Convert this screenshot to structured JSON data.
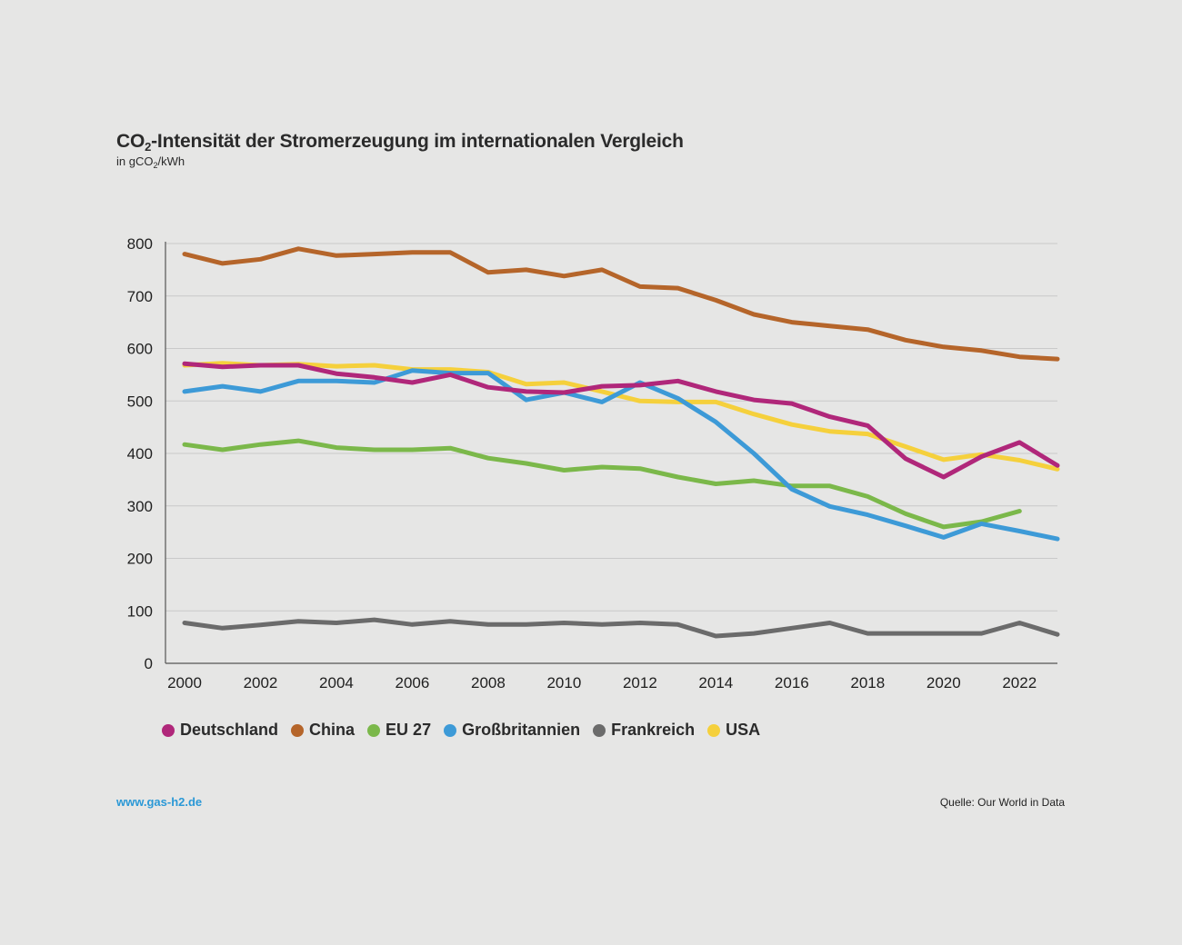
{
  "chart_data": {
    "type": "line",
    "title_prefix": "CO",
    "title_sub": "2",
    "title_suffix": "-Intensität der Stromerzeugung im internationalen Vergleich",
    "subtitle_prefix": "in gCO",
    "subtitle_sub": "2",
    "subtitle_suffix": "/kWh",
    "xlim": [
      2000,
      2023
    ],
    "ylim": [
      0,
      800
    ],
    "x_ticks": [
      2000,
      2002,
      2004,
      2006,
      2008,
      2010,
      2012,
      2014,
      2016,
      2018,
      2020,
      2022
    ],
    "y_ticks": [
      0,
      100,
      200,
      300,
      400,
      500,
      600,
      700,
      800
    ],
    "grid": true,
    "legend_position": "bottom-left",
    "series": [
      {
        "name": "USA",
        "color": "#f5d03c",
        "start": 2000,
        "values": [
          568,
          572,
          568,
          570,
          566,
          568,
          560,
          560,
          555,
          532,
          535,
          518,
          500,
          498,
          498,
          475,
          455,
          442,
          437,
          413,
          388,
          398,
          387,
          370
        ]
      },
      {
        "name": "China",
        "color": "#b5652a",
        "start": 2000,
        "values": [
          780,
          762,
          770,
          790,
          777,
          780,
          783,
          783,
          745,
          750,
          738,
          750,
          718,
          715,
          692,
          665,
          650,
          643,
          636,
          616,
          603,
          596,
          584,
          580
        ]
      },
      {
        "name": "Frankreich",
        "color": "#6b6b6b",
        "start": 2000,
        "values": [
          77,
          67,
          73,
          80,
          77,
          83,
          74,
          80,
          74,
          74,
          77,
          74,
          77,
          74,
          52,
          57,
          67,
          77,
          57,
          57,
          57,
          57,
          77,
          55
        ]
      },
      {
        "name": "EU 27",
        "color": "#7bb84a",
        "start": 2000,
        "values": [
          417,
          407,
          417,
          424,
          411,
          407,
          407,
          410,
          391,
          381,
          368,
          374,
          371,
          355,
          342,
          348,
          338,
          338,
          318,
          285,
          260,
          270,
          290
        ]
      },
      {
        "name": "Großbritannien",
        "color": "#3d9ad7",
        "start": 2000,
        "values": [
          518,
          528,
          518,
          538,
          538,
          535,
          558,
          553,
          553,
          502,
          516,
          498,
          535,
          505,
          460,
          400,
          332,
          299,
          283,
          262,
          240,
          266,
          252,
          237
        ]
      },
      {
        "name": "Deutschland",
        "color": "#b0277a",
        "start": 2000,
        "values": [
          571,
          565,
          568,
          568,
          552,
          545,
          535,
          550,
          526,
          518,
          516,
          528,
          530,
          538,
          518,
          502,
          495,
          470,
          453,
          390,
          355,
          394,
          421,
          377
        ]
      }
    ],
    "legend_entries": [
      {
        "name": "Deutschland",
        "color": "#b0277a"
      },
      {
        "name": "China",
        "color": "#b5652a"
      },
      {
        "name": "EU 27",
        "color": "#7bb84a"
      },
      {
        "name": "Großbritannien",
        "color": "#3d9ad7"
      },
      {
        "name": "Frankreich",
        "color": "#6b6b6b"
      },
      {
        "name": "USA",
        "color": "#f5d03c"
      }
    ]
  },
  "footer": {
    "website": "www.gas-h2.de",
    "source": "Quelle: Our World in Data"
  }
}
